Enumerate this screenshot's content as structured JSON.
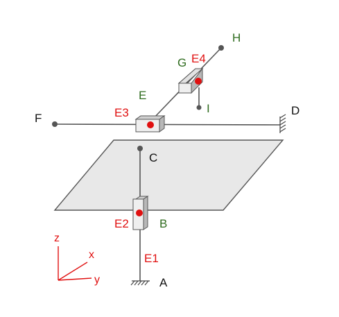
{
  "points": {
    "A": "A",
    "B": "B",
    "C": "C",
    "D": "D",
    "E": "E",
    "F": "F",
    "G": "G",
    "H": "H",
    "I": "I"
  },
  "elements": {
    "E1": "E1",
    "E2": "E2",
    "E3": "E3",
    "E4": "E4"
  },
  "axes": {
    "x": "x",
    "y": "y",
    "z": "z"
  },
  "colors": {
    "point_label": "#111111",
    "element_label": "#e01010",
    "green_label": "#2e6b1e",
    "plane_fill": "#e8e8e8",
    "joint_dot": "#e01010",
    "axis_color": "#e01010"
  }
}
